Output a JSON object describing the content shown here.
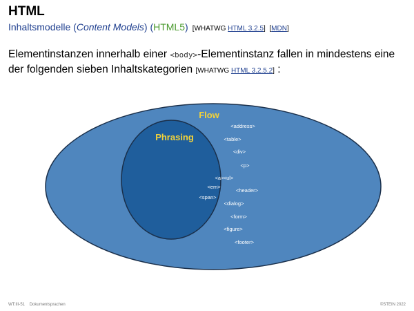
{
  "header": {
    "title": "HTML",
    "subtitle_prefix": "Inhaltsmodelle (",
    "subtitle_em": "Content Models",
    "subtitle_suffix": ") (",
    "subtitle_html5": "HTML5",
    "subtitle_close": ")",
    "ref_whatwg_prefix": "[WHATWG ",
    "ref_whatwg_link": "HTML 3.2.5",
    "ref_whatwg_suffix": "]",
    "ref_mdn_prefix": "[",
    "ref_mdn_link": "MDN",
    "ref_mdn_suffix": "]"
  },
  "intro": {
    "text1": "Elementinstanzen innerhalb einer ",
    "code": "<body>",
    "text2": "-Elementinstanz fallen in mindestens eine der folgenden sieben Inhaltskategorien ",
    "ref_prefix": "[WHATWG ",
    "ref_link": "HTML 3.2.5.2",
    "ref_suffix": "]",
    "text3": " :"
  },
  "diagram": {
    "flow_label": "Flow",
    "phrasing_label": "Phrasing",
    "flow_elements": [
      "<address>",
      "<table>",
      "<div>",
      "<p>",
      "<ul>",
      "<header>",
      "<dialog>",
      "<form>",
      "<figure>",
      "<footer>"
    ],
    "phrasing_elements": [
      "<a>",
      "<em>",
      "<span>"
    ],
    "colors": {
      "flow_fill": "#4f86be",
      "phrasing_fill": "#1f5e9c",
      "outline": "#1a2f4a",
      "label": "#f2d23a",
      "tag_text": "#ffffff"
    }
  },
  "footer": {
    "left_code": "WT:III-51",
    "left_title": "Dokumentsprachen",
    "right": "©STEIN 2022"
  }
}
